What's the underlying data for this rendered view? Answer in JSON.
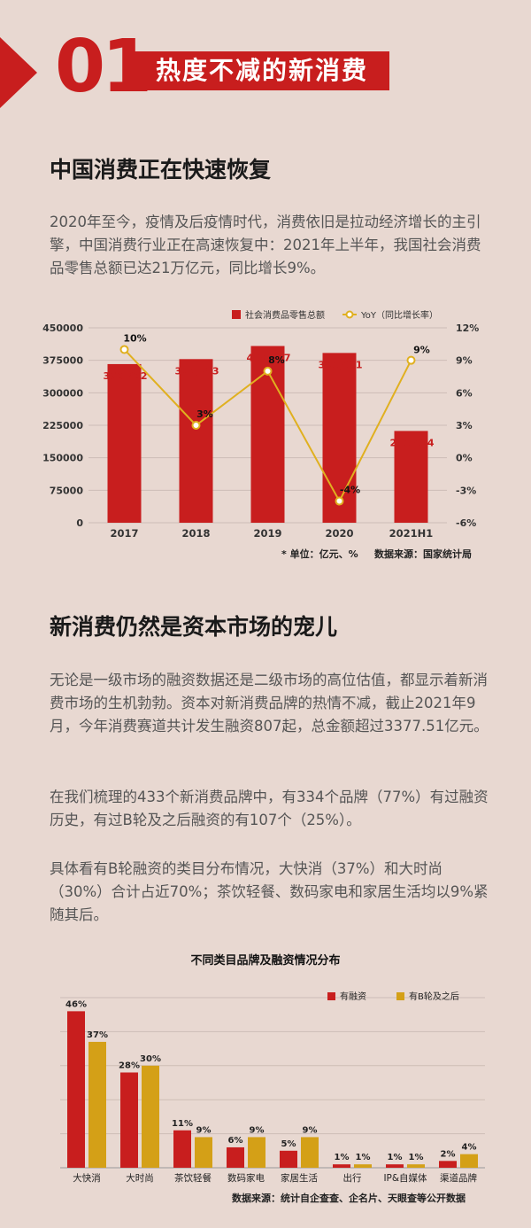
{
  "section": {
    "number": "01",
    "title": "热度不减的新消费"
  },
  "h1": "中国消费正在快速恢复",
  "p1": "2020年至今，疫情及后疫情时代，消费依旧是拉动经济增长的主引擎，中国消费行业正在高速恢复中：2021年上半年，我国社会消费品零售总额已达21万亿元，同比增长9%。",
  "h2": "新消费仍然是资本市场的宠儿",
  "p2": "无论是一级市场的融资数据还是二级市场的高位估值，都显示着新消费市场的生机勃勃。资本对新消费品牌的热情不减，截止2021年9月，今年消费赛道共计发生融资807起，总金额超过3377.51亿元。",
  "p3": "在我们梳理的433个新消费品牌中，有334个品牌（77%）有过融资历史，有过B轮及之后融资的有107个（25%）。",
  "p4": "具体看有B轮融资的类目分布情况，大快消（37%）和大时尚（30%）合计占近70%；茶饮轻餐、数码家电和家居生活均以9%紧随其后。",
  "chart_data": [
    {
      "type": "bar",
      "categories": [
        "2017",
        "2018",
        "2019",
        "2020",
        "2021H1"
      ],
      "series": [
        {
          "name": "社会消费品零售总额",
          "values": [
            366262,
            377783,
            408017,
            391981,
            211904
          ],
          "labels": [
            "366,262",
            "377,783",
            "408,017",
            "391,981",
            "211,904"
          ],
          "color": "#c81e1e",
          "kind": "bar"
        },
        {
          "name": "YoY（同比增长率）",
          "values": [
            10,
            3,
            8,
            -4,
            9
          ],
          "labels": [
            "10%",
            "3%",
            "8%",
            "-4%",
            "9%"
          ],
          "color": "#e0b020",
          "kind": "line"
        }
      ],
      "yticks": [
        "450000",
        "375000",
        "300000",
        "225000",
        "150000",
        "75000",
        "0"
      ],
      "y2ticks": [
        "12%",
        "9%",
        "6%",
        "3%",
        "0%",
        "-3%",
        "-6%"
      ],
      "ylim": [
        0,
        450000
      ],
      "y2lim": [
        -6,
        12
      ],
      "legend": "top-right",
      "note": "* 单位：亿元、%",
      "source": "数据来源：国家统计局"
    },
    {
      "type": "bar",
      "title": "不同类目品牌及融资情况分布",
      "categories": [
        "大快消",
        "大时尚",
        "茶饮轻餐",
        "数码家电",
        "家居生活",
        "出行",
        "IP&自媒体",
        "渠道品牌"
      ],
      "series": [
        {
          "name": "有融资",
          "values": [
            46,
            28,
            11,
            6,
            5,
            1,
            1,
            2
          ],
          "labels": [
            "46%",
            "28%",
            "11%",
            "6%",
            "5%",
            "1%",
            "1%",
            "2%"
          ],
          "color": "#c81e1e"
        },
        {
          "name": "有B轮及之后",
          "values": [
            37,
            30,
            9,
            9,
            9,
            1,
            1,
            4
          ],
          "labels": [
            "37%",
            "30%",
            "9%",
            "9%",
            "9%",
            "1%",
            "1%",
            "4%"
          ],
          "color": "#d4a017"
        }
      ],
      "ylim": [
        0,
        50
      ],
      "legend": "top-right",
      "source": "数据来源：统计自企查查、企名片、天眼查等公开数据"
    }
  ]
}
